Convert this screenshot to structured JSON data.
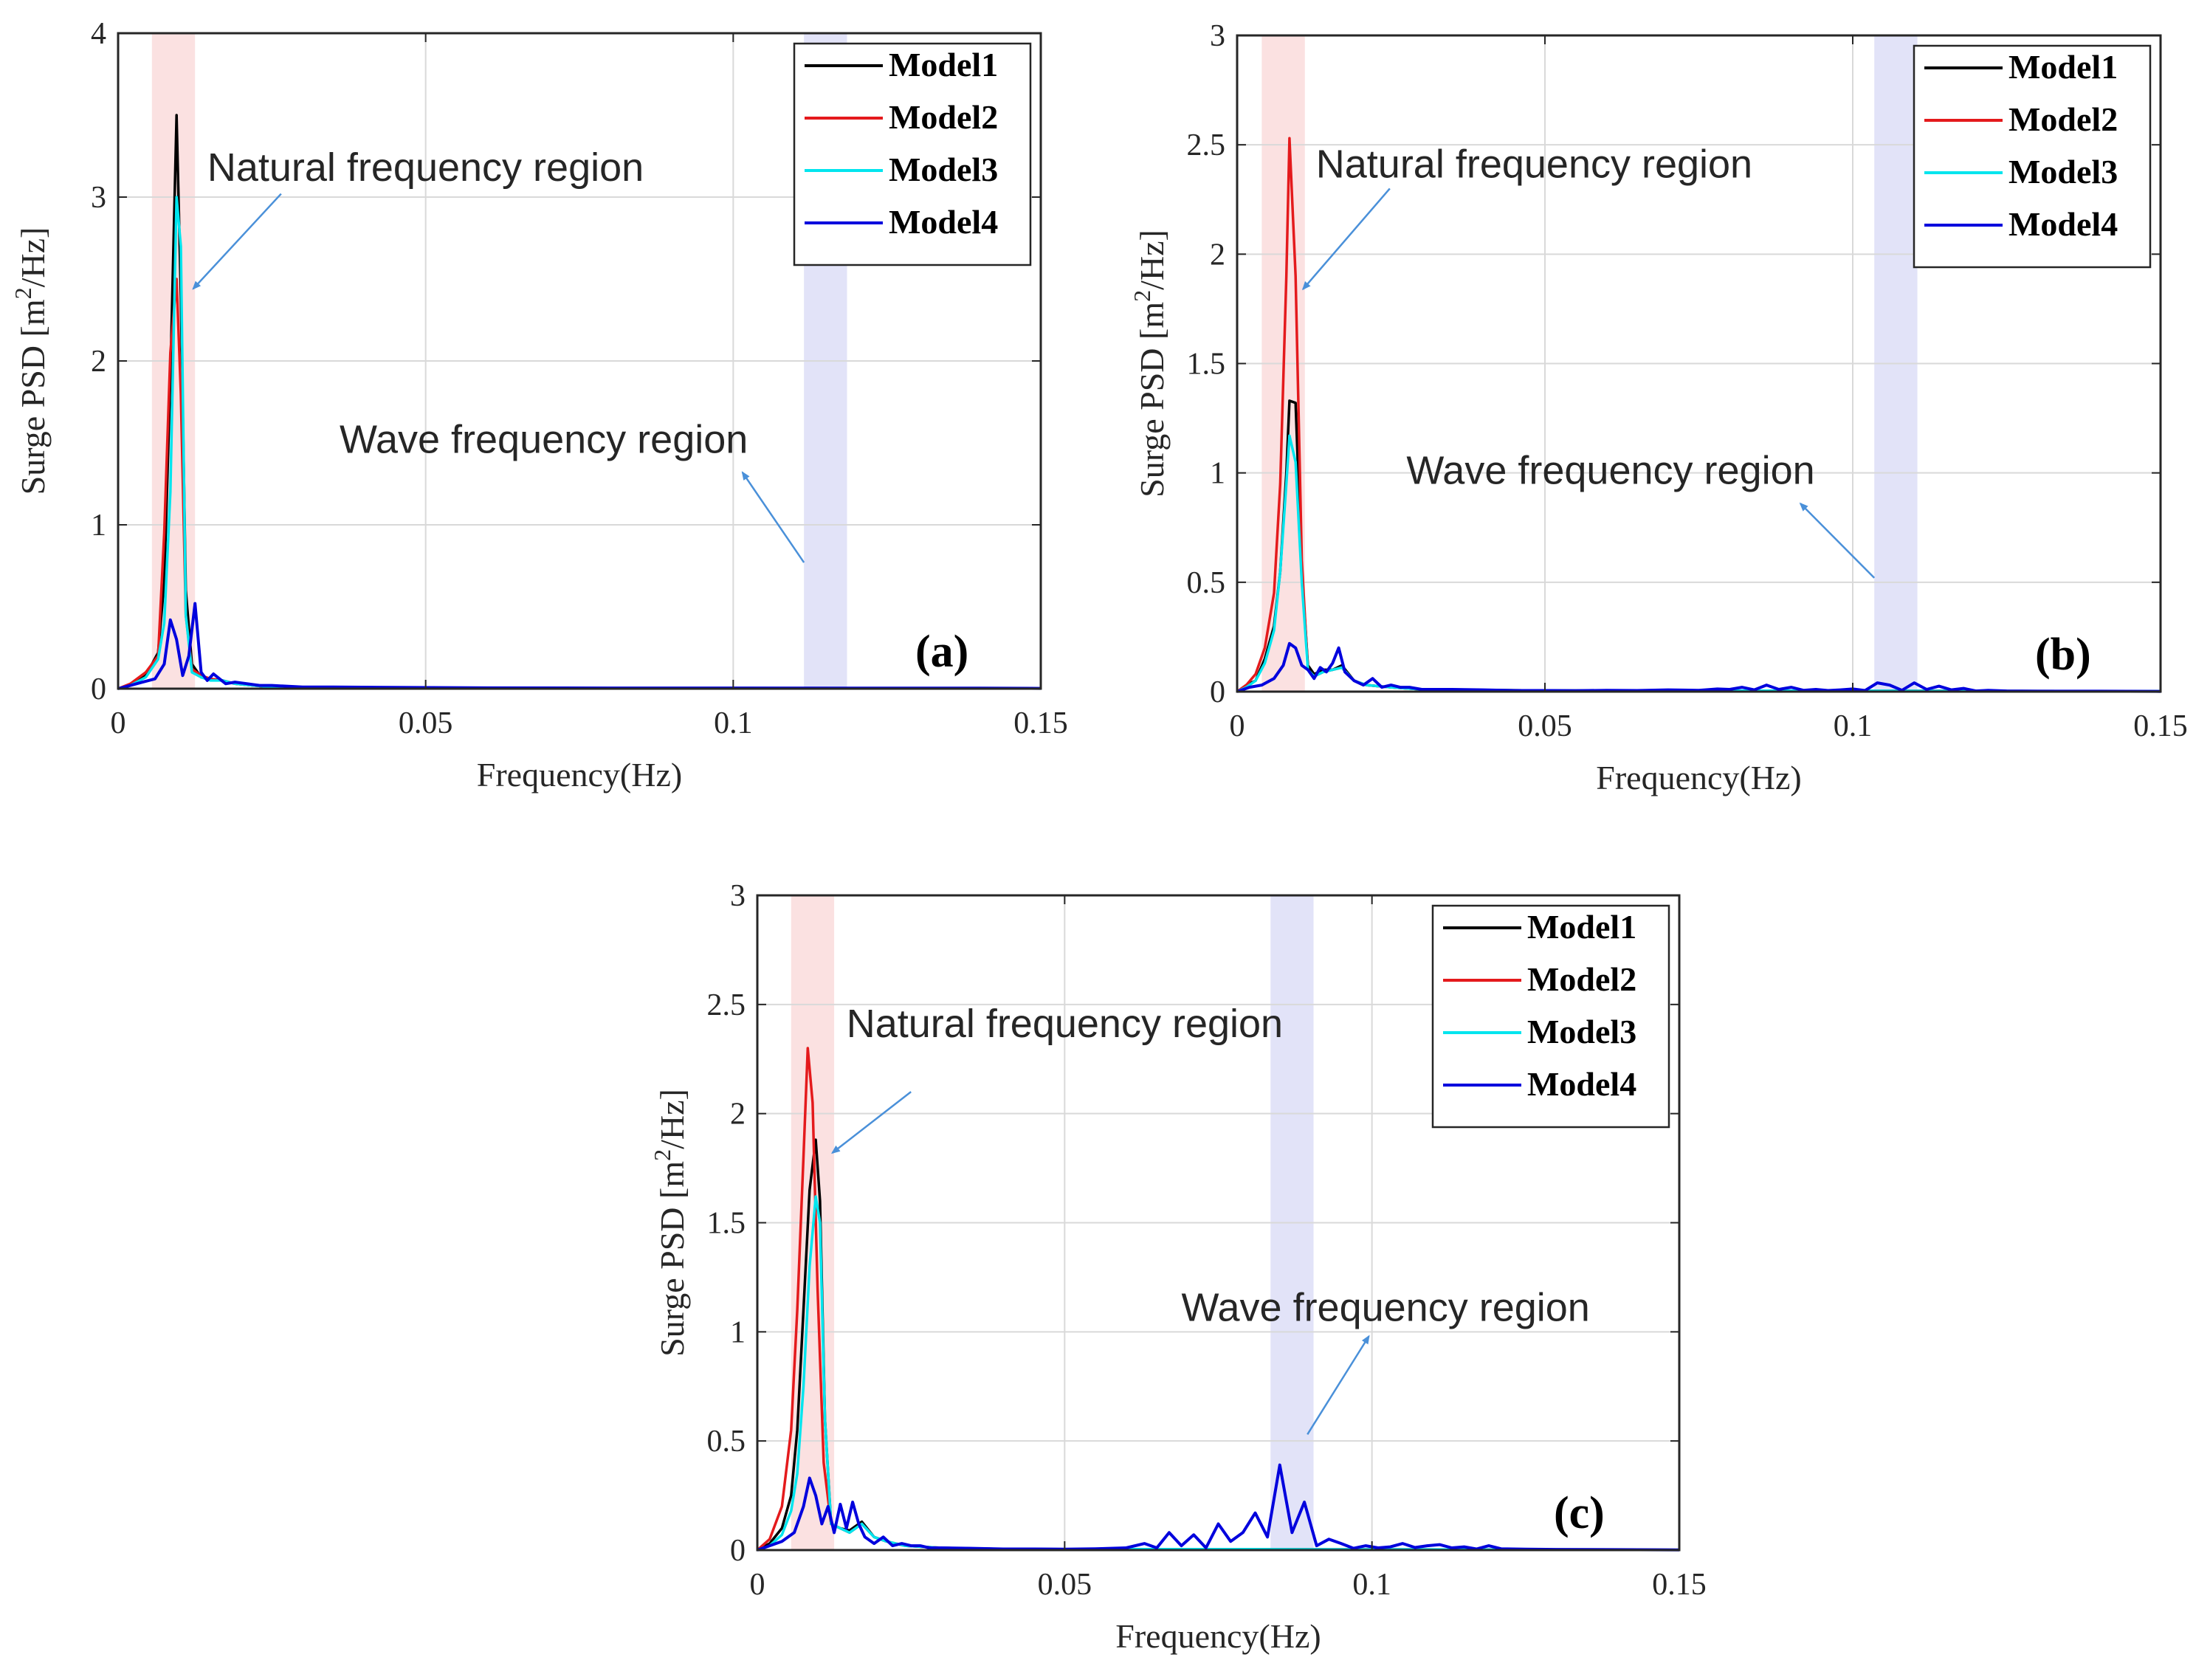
{
  "chart_data": [
    {
      "type": "line",
      "panel_label": "(a)",
      "xlabel": "Frequency(Hz)",
      "ylabel": "Surge PSD [m",
      "ylabel_sup": "2",
      "ylabel_suffix": "/Hz]",
      "xlim": [
        0,
        0.15
      ],
      "ylim": [
        0,
        4
      ],
      "xticks": [
        0,
        0.05,
        0.1,
        0.15
      ],
      "xtick_labels": [
        "0",
        "0.05",
        "0.1",
        "0.15"
      ],
      "yticks": [
        0,
        1,
        2,
        3,
        4
      ],
      "ytick_labels": [
        "0",
        "1",
        "2",
        "3",
        "4"
      ],
      "grid": true,
      "legend_position": "top-right",
      "natural_region": [
        0.0055,
        0.0125
      ],
      "wave_region": [
        0.1115,
        0.1185
      ],
      "natural_label": "Natural frequency region",
      "wave_label": "Wave frequency region",
      "natural_arrow": {
        "from": [
          0.0265,
          3.02
        ],
        "to": [
          0.0122,
          2.44
        ]
      },
      "wave_arrow": {
        "from": [
          0.1115,
          0.77
        ],
        "to": [
          0.1015,
          1.32
        ]
      },
      "natural_text_at": [
        0.0145,
        3.1
      ],
      "wave_text_at": [
        0.036,
        1.44
      ],
      "series": [
        {
          "name": "Model1",
          "color": "#000000",
          "x": [
            0,
            0.002,
            0.0045,
            0.0065,
            0.0075,
            0.0085,
            0.0095,
            0.0102,
            0.011,
            0.012,
            0.0135,
            0.015,
            0.017,
            0.019,
            0.022,
            0.025,
            0.03,
            0.04,
            0.05,
            0.08,
            0.11,
            0.15
          ],
          "y": [
            0,
            0.02,
            0.08,
            0.22,
            0.65,
            1.9,
            3.5,
            2.4,
            0.6,
            0.15,
            0.07,
            0.06,
            0.05,
            0.03,
            0.02,
            0.01,
            0.01,
            0.005,
            0.003,
            0.002,
            0.002,
            0.001
          ]
        },
        {
          "name": "Model2",
          "color": "#e41a1c",
          "x": [
            0,
            0.002,
            0.0045,
            0.0065,
            0.0075,
            0.0085,
            0.0095,
            0.0102,
            0.011,
            0.012,
            0.0135,
            0.015,
            0.017,
            0.019,
            0.022,
            0.025,
            0.03,
            0.04,
            0.05,
            0.08,
            0.11,
            0.15
          ],
          "y": [
            0,
            0.03,
            0.1,
            0.2,
            0.95,
            2.05,
            2.5,
            1.8,
            0.45,
            0.12,
            0.08,
            0.06,
            0.05,
            0.03,
            0.02,
            0.01,
            0.01,
            0.005,
            0.003,
            0.002,
            0.002,
            0.001
          ]
        },
        {
          "name": "Model3",
          "color": "#00e5ee",
          "x": [
            0,
            0.002,
            0.0045,
            0.0065,
            0.0075,
            0.0085,
            0.0095,
            0.0102,
            0.011,
            0.012,
            0.0135,
            0.015,
            0.017,
            0.019,
            0.022,
            0.025,
            0.03,
            0.04,
            0.05,
            0.08,
            0.11,
            0.15
          ],
          "y": [
            0,
            0.02,
            0.07,
            0.18,
            0.4,
            1.2,
            3.0,
            2.7,
            0.45,
            0.1,
            0.07,
            0.05,
            0.05,
            0.03,
            0.02,
            0.01,
            0.01,
            0.005,
            0.003,
            0.002,
            0.002,
            0.001
          ]
        },
        {
          "name": "Model4",
          "color": "#0000dd",
          "x": [
            0,
            0.002,
            0.004,
            0.006,
            0.0075,
            0.0085,
            0.0095,
            0.0105,
            0.0115,
            0.0125,
            0.0135,
            0.0145,
            0.0155,
            0.0165,
            0.0175,
            0.019,
            0.021,
            0.023,
            0.025,
            0.03,
            0.035,
            0.045,
            0.06,
            0.08,
            0.1,
            0.12,
            0.14,
            0.15
          ],
          "y": [
            0,
            0.02,
            0.04,
            0.06,
            0.15,
            0.42,
            0.3,
            0.08,
            0.2,
            0.52,
            0.1,
            0.05,
            0.09,
            0.06,
            0.03,
            0.04,
            0.03,
            0.02,
            0.02,
            0.01,
            0.01,
            0.008,
            0.005,
            0.004,
            0.004,
            0.003,
            0.003,
            0.002
          ]
        }
      ]
    },
    {
      "type": "line",
      "panel_label": "(b)",
      "xlabel": "Frequency(Hz)",
      "ylabel": "Surge PSD [m",
      "ylabel_sup": "2",
      "ylabel_suffix": "/Hz]",
      "xlim": [
        0,
        0.15
      ],
      "ylim": [
        0,
        3
      ],
      "xticks": [
        0,
        0.05,
        0.1,
        0.15
      ],
      "xtick_labels": [
        "0",
        "0.05",
        "0.1",
        "0.15"
      ],
      "yticks": [
        0,
        0.5,
        1,
        1.5,
        2,
        2.5,
        3
      ],
      "ytick_labels": [
        "0",
        "0.5",
        "1",
        "1.5",
        "2",
        "2.5",
        "3"
      ],
      "grid": true,
      "legend_position": "top-right",
      "natural_region": [
        0.004,
        0.011
      ],
      "wave_region": [
        0.1035,
        0.1105
      ],
      "natural_label": "Natural frequency region",
      "wave_label": "Wave frequency region",
      "natural_arrow": {
        "from": [
          0.0248,
          2.3
        ],
        "to": [
          0.0107,
          1.84
        ]
      },
      "wave_arrow": {
        "from": [
          0.1035,
          0.52
        ],
        "to": [
          0.0915,
          0.86
        ]
      },
      "natural_text_at": [
        0.0128,
        2.35
      ],
      "wave_text_at": [
        0.0275,
        0.95
      ],
      "series": [
        {
          "name": "Model1",
          "color": "#000000",
          "x": [
            0,
            0.0015,
            0.003,
            0.0045,
            0.006,
            0.007,
            0.008,
            0.0085,
            0.0095,
            0.0105,
            0.0115,
            0.0125,
            0.014,
            0.0155,
            0.017,
            0.019,
            0.021,
            0.025,
            0.03,
            0.05,
            0.08,
            0.1,
            0.12,
            0.15
          ],
          "y": [
            0,
            0.03,
            0.05,
            0.15,
            0.3,
            0.55,
            1.0,
            1.33,
            1.32,
            0.55,
            0.12,
            0.08,
            0.1,
            0.1,
            0.12,
            0.05,
            0.03,
            0.02,
            0.01,
            0.005,
            0.004,
            0.004,
            0.003,
            0.002
          ]
        },
        {
          "name": "Model2",
          "color": "#e41a1c",
          "x": [
            0,
            0.0015,
            0.003,
            0.0045,
            0.006,
            0.007,
            0.008,
            0.0085,
            0.0095,
            0.0105,
            0.0115,
            0.0125,
            0.014,
            0.0155,
            0.017,
            0.019,
            0.021,
            0.025,
            0.03,
            0.05,
            0.08,
            0.1,
            0.12,
            0.15
          ],
          "y": [
            0,
            0.03,
            0.08,
            0.2,
            0.45,
            0.95,
            1.9,
            2.53,
            1.9,
            0.6,
            0.1,
            0.07,
            0.09,
            0.1,
            0.11,
            0.05,
            0.03,
            0.02,
            0.01,
            0.005,
            0.004,
            0.004,
            0.003,
            0.002
          ]
        },
        {
          "name": "Model3",
          "color": "#00e5ee",
          "x": [
            0,
            0.0015,
            0.003,
            0.0045,
            0.006,
            0.007,
            0.008,
            0.0085,
            0.0095,
            0.0105,
            0.0115,
            0.0125,
            0.014,
            0.0155,
            0.017,
            0.019,
            0.021,
            0.025,
            0.03,
            0.05,
            0.08,
            0.1,
            0.12,
            0.15
          ],
          "y": [
            0,
            0.02,
            0.05,
            0.13,
            0.28,
            0.55,
            0.95,
            1.17,
            1.05,
            0.5,
            0.1,
            0.07,
            0.09,
            0.1,
            0.11,
            0.05,
            0.03,
            0.02,
            0.01,
            0.005,
            0.004,
            0.004,
            0.003,
            0.002
          ]
        },
        {
          "name": "Model4",
          "color": "#0000dd",
          "x": [
            0,
            0.002,
            0.004,
            0.006,
            0.0075,
            0.0085,
            0.0095,
            0.0105,
            0.0115,
            0.0125,
            0.0135,
            0.0145,
            0.0155,
            0.0165,
            0.0175,
            0.019,
            0.0205,
            0.022,
            0.0235,
            0.025,
            0.0265,
            0.028,
            0.03,
            0.035,
            0.04,
            0.045,
            0.05,
            0.055,
            0.06,
            0.065,
            0.07,
            0.075,
            0.078,
            0.08,
            0.082,
            0.084,
            0.086,
            0.088,
            0.09,
            0.092,
            0.094,
            0.096,
            0.098,
            0.1,
            0.102,
            0.104,
            0.106,
            0.108,
            0.11,
            0.112,
            0.114,
            0.116,
            0.118,
            0.12,
            0.122,
            0.125,
            0.13,
            0.14,
            0.15
          ],
          "y": [
            0,
            0.02,
            0.03,
            0.06,
            0.12,
            0.22,
            0.2,
            0.12,
            0.1,
            0.06,
            0.11,
            0.09,
            0.13,
            0.2,
            0.09,
            0.05,
            0.03,
            0.06,
            0.02,
            0.03,
            0.02,
            0.02,
            0.01,
            0.01,
            0.008,
            0.005,
            0.005,
            0.004,
            0.006,
            0.005,
            0.008,
            0.006,
            0.012,
            0.01,
            0.02,
            0.008,
            0.03,
            0.01,
            0.02,
            0.006,
            0.01,
            0.005,
            0.008,
            0.012,
            0.005,
            0.04,
            0.03,
            0.006,
            0.04,
            0.01,
            0.025,
            0.008,
            0.015,
            0.003,
            0.006,
            0.003,
            0.002,
            0.002,
            0.001
          ]
        }
      ]
    },
    {
      "type": "line",
      "panel_label": "(c)",
      "xlabel": "Frequency(Hz)",
      "ylabel": "Surge PSD [m",
      "ylabel_sup": "2",
      "ylabel_suffix": "/Hz]",
      "xlim": [
        0,
        0.15
      ],
      "ylim": [
        0,
        3
      ],
      "xticks": [
        0,
        0.05,
        0.1,
        0.15
      ],
      "xtick_labels": [
        "0",
        "0.05",
        "0.1",
        "0.15"
      ],
      "yticks": [
        0,
        0.5,
        1,
        1.5,
        2,
        2.5,
        3
      ],
      "ytick_labels": [
        "0",
        "0.5",
        "1",
        "1.5",
        "2",
        "2.5",
        "3"
      ],
      "grid": true,
      "legend_position": "top-right",
      "natural_region": [
        0.0055,
        0.0125
      ],
      "wave_region": [
        0.0835,
        0.0905
      ],
      "natural_label": "Natural frequency region",
      "wave_label": "Wave frequency region",
      "natural_arrow": {
        "from": [
          0.025,
          2.1
        ],
        "to": [
          0.0122,
          1.82
        ]
      },
      "wave_arrow": {
        "from": [
          0.0895,
          0.53
        ],
        "to": [
          0.0995,
          0.98
        ]
      },
      "natural_text_at": [
        0.0145,
        2.35
      ],
      "wave_text_at": [
        0.069,
        1.05
      ],
      "series": [
        {
          "name": "Model1",
          "color": "#000000",
          "x": [
            0,
            0.002,
            0.004,
            0.0055,
            0.0065,
            0.0075,
            0.0085,
            0.0095,
            0.0102,
            0.011,
            0.012,
            0.0135,
            0.015,
            0.017,
            0.019,
            0.021,
            0.024,
            0.03,
            0.04,
            0.05,
            0.08,
            0.1,
            0.12,
            0.15
          ],
          "y": [
            0,
            0.03,
            0.1,
            0.25,
            0.55,
            1.1,
            1.65,
            1.88,
            1.6,
            0.6,
            0.12,
            0.1,
            0.09,
            0.13,
            0.06,
            0.04,
            0.02,
            0.01,
            0.005,
            0.004,
            0.004,
            0.003,
            0.002,
            0.001
          ]
        },
        {
          "name": "Model2",
          "color": "#e41a1c",
          "x": [
            0,
            0.002,
            0.004,
            0.0055,
            0.0065,
            0.0075,
            0.0082,
            0.009,
            0.0098,
            0.0108,
            0.012,
            0.0135,
            0.015,
            0.017,
            0.019,
            0.021,
            0.024,
            0.03,
            0.04,
            0.05,
            0.08,
            0.1,
            0.12,
            0.15
          ],
          "y": [
            0,
            0.05,
            0.2,
            0.55,
            1.1,
            1.8,
            2.3,
            2.05,
            1.2,
            0.4,
            0.12,
            0.1,
            0.08,
            0.12,
            0.06,
            0.04,
            0.02,
            0.01,
            0.005,
            0.004,
            0.004,
            0.003,
            0.002,
            0.001
          ]
        },
        {
          "name": "Model3",
          "color": "#00e5ee",
          "x": [
            0,
            0.002,
            0.004,
            0.0055,
            0.0065,
            0.0075,
            0.0085,
            0.0095,
            0.0102,
            0.011,
            0.012,
            0.0135,
            0.015,
            0.017,
            0.019,
            0.021,
            0.024,
            0.03,
            0.04,
            0.05,
            0.08,
            0.1,
            0.12,
            0.15
          ],
          "y": [
            0,
            0.02,
            0.07,
            0.18,
            0.35,
            0.75,
            1.3,
            1.62,
            1.5,
            0.6,
            0.12,
            0.1,
            0.08,
            0.12,
            0.06,
            0.04,
            0.02,
            0.01,
            0.005,
            0.004,
            0.004,
            0.003,
            0.002,
            0.001
          ]
        },
        {
          "name": "Model4",
          "color": "#0000dd",
          "x": [
            0,
            0.002,
            0.004,
            0.006,
            0.0075,
            0.0085,
            0.0095,
            0.0105,
            0.0115,
            0.0125,
            0.0135,
            0.0145,
            0.0155,
            0.0165,
            0.0175,
            0.019,
            0.0205,
            0.022,
            0.0235,
            0.025,
            0.0265,
            0.028,
            0.03,
            0.035,
            0.04,
            0.045,
            0.05,
            0.055,
            0.06,
            0.063,
            0.065,
            0.067,
            0.069,
            0.071,
            0.073,
            0.075,
            0.077,
            0.079,
            0.081,
            0.083,
            0.085,
            0.087,
            0.089,
            0.091,
            0.093,
            0.095,
            0.097,
            0.099,
            0.101,
            0.103,
            0.105,
            0.107,
            0.109,
            0.111,
            0.113,
            0.115,
            0.117,
            0.119,
            0.121,
            0.125,
            0.13,
            0.14,
            0.15
          ],
          "y": [
            0,
            0.02,
            0.04,
            0.08,
            0.2,
            0.33,
            0.25,
            0.12,
            0.2,
            0.08,
            0.21,
            0.1,
            0.22,
            0.12,
            0.06,
            0.03,
            0.06,
            0.02,
            0.03,
            0.02,
            0.02,
            0.01,
            0.01,
            0.008,
            0.005,
            0.005,
            0.004,
            0.006,
            0.01,
            0.03,
            0.01,
            0.08,
            0.02,
            0.07,
            0.01,
            0.12,
            0.04,
            0.08,
            0.17,
            0.06,
            0.39,
            0.08,
            0.22,
            0.02,
            0.05,
            0.03,
            0.008,
            0.02,
            0.01,
            0.015,
            0.03,
            0.012,
            0.02,
            0.025,
            0.01,
            0.015,
            0.005,
            0.02,
            0.006,
            0.004,
            0.003,
            0.002,
            0.001
          ]
        }
      ]
    }
  ]
}
